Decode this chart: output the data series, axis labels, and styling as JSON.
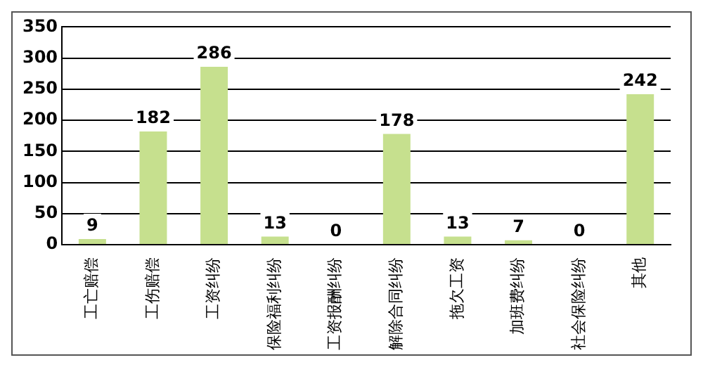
{
  "chart_data": {
    "type": "bar",
    "categories": [
      "工亡赔偿",
      "工伤赔偿",
      "工资纠纷",
      "保险福利纠纷",
      "工资报酬纠纷",
      "解除合同纠纷",
      "拖欠工资",
      "加班费纠纷",
      "社会保险纠纷",
      "其他"
    ],
    "values": [
      9,
      182,
      286,
      13,
      0,
      178,
      13,
      7,
      0,
      242
    ],
    "color": "#c6e08e",
    "ylim": [
      0,
      350
    ],
    "yticks": [
      0,
      50,
      100,
      150,
      200,
      250,
      300,
      350
    ],
    "grid": "y",
    "data_labels": true,
    "legend": false
  }
}
